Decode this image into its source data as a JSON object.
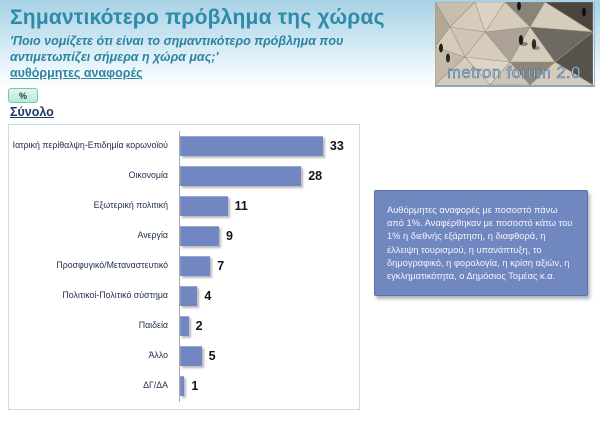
{
  "header": {
    "title": "Σημαντικότερο πρόβλημα της χώρας",
    "subtitle": "'Ποιο νομίζετε ότι  είναι το σημαντικότερο πρόβλημα που αντιμετωπίζει σήμερα η χώρα μας;'",
    "spontaneous_label": "αυθόρμητες αναφορές",
    "accent_color": "#2c8ba6",
    "logo_text": "metron forum 2.0"
  },
  "toolbar": {
    "percent_button_label": "%"
  },
  "section": {
    "group_label": "Σύνολο"
  },
  "chart_data": {
    "type": "bar",
    "orientation": "horizontal",
    "title": "Σημαντικότερο πρόβλημα της χώρας",
    "unit": "%",
    "categories": [
      "Ιατρική περίθαλψη-Επιδημία κορωνοϊού",
      "Οικονομία",
      "Εξωτερική πολιτική",
      "Ανεργία",
      "Προσφυγικό/Μεταναστευτικό",
      "Πολιτικοί-Πολιτικό σύστημα",
      "Παιδεία",
      "Άλλο",
      "ΔΓ/ΔΑ"
    ],
    "values": [
      33,
      28,
      11,
      9,
      7,
      4,
      2,
      5,
      1
    ],
    "xlim": [
      0,
      35
    ],
    "bar_color": "#7287c1",
    "value_labels": true,
    "grid": false,
    "legend": false
  },
  "note_box": {
    "text": "Αυθόρμητες αναφορές με ποσοστό πάνω από 1%. Αναφέρθηκαν με ποσοστό κάτω του 1% η διεθνής εξάρτηση, η διαφθορά, η έλλειψη τουρισμού, η υπανάπτυξη, το δημογραφικό, η φορολογία, η κρίση αξιών, η εγκληματικότητα, ο Δημόσιος Τομέας κ.α.",
    "background": "#7187bf"
  }
}
